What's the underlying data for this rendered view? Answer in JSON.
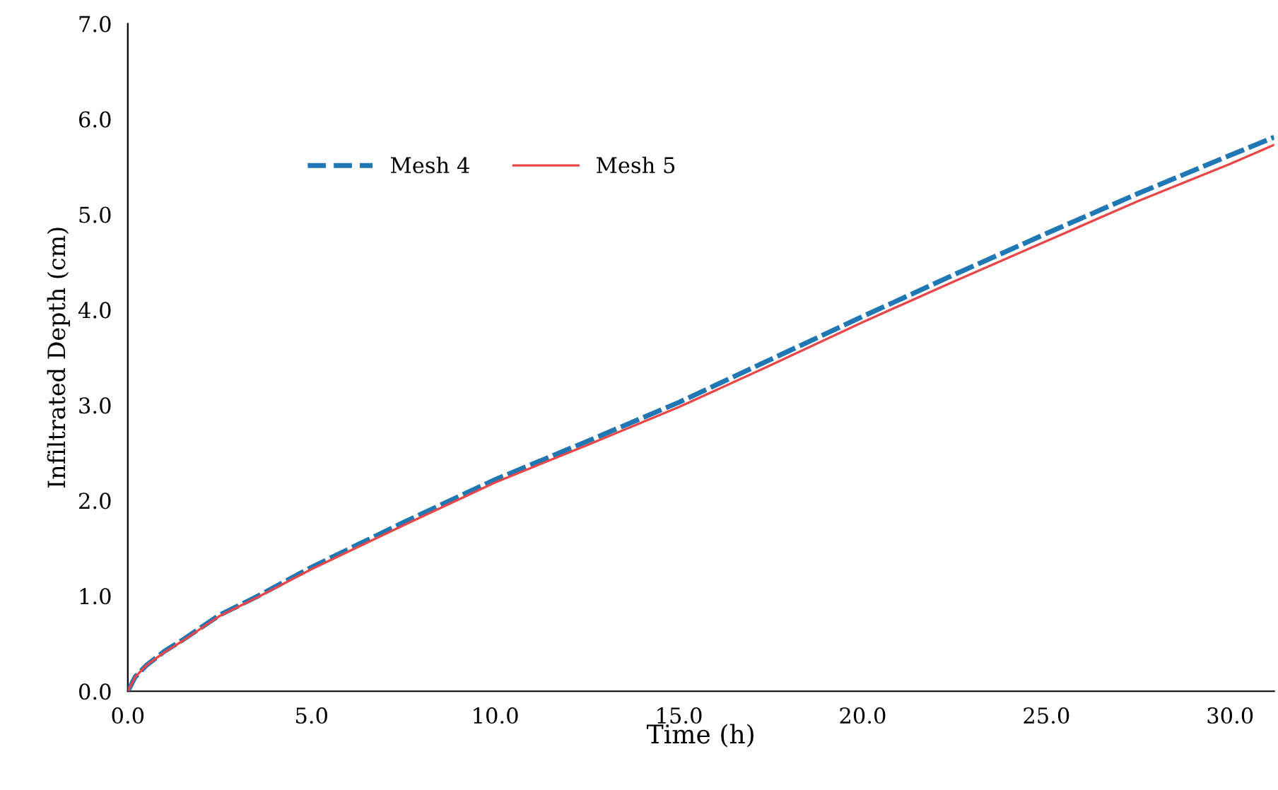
{
  "chart_data": {
    "type": "line",
    "xlabel": "Time (h)",
    "ylabel": "Infiltrated Depth (cm)",
    "xlim": [
      0,
      31.2
    ],
    "ylim": [
      0,
      7
    ],
    "xticks": [
      {
        "value": 0,
        "label": "0.0"
      },
      {
        "value": 5,
        "label": "5.0"
      },
      {
        "value": 10,
        "label": "10.0"
      },
      {
        "value": 15,
        "label": "15.0"
      },
      {
        "value": 20,
        "label": "20.0"
      },
      {
        "value": 25,
        "label": "25.0"
      },
      {
        "value": 30,
        "label": "30.0"
      }
    ],
    "yticks": [
      {
        "value": 0,
        "label": "0.0"
      },
      {
        "value": 1,
        "label": "1.0"
      },
      {
        "value": 2,
        "label": "2.0"
      },
      {
        "value": 3,
        "label": "3.0"
      },
      {
        "value": 4,
        "label": "4.0"
      },
      {
        "value": 5,
        "label": "5.0"
      },
      {
        "value": 6,
        "label": "6.0"
      },
      {
        "value": 7,
        "label": "7.0"
      }
    ],
    "x": [
      0,
      0.2,
      0.5,
      1,
      1.5,
      2.5,
      3.5,
      5,
      7.5,
      10,
      12.5,
      15,
      17.5,
      20,
      22.5,
      25,
      27.5,
      30,
      31.2
    ],
    "grid": false,
    "legend": "top left",
    "series": [
      {
        "name": "Mesh 4",
        "color": "#1f77b4",
        "line_style": "dashed",
        "values": [
          0,
          0.15,
          0.27,
          0.42,
          0.54,
          0.8,
          0.99,
          1.3,
          1.77,
          2.22,
          2.62,
          3.03,
          3.48,
          3.93,
          4.37,
          4.8,
          5.22,
          5.62,
          5.81
        ]
      },
      {
        "name": "Mesh 5",
        "color": "#e8474a",
        "line_style": "solid",
        "values": [
          0,
          0.15,
          0.27,
          0.41,
          0.53,
          0.79,
          0.98,
          1.28,
          1.74,
          2.19,
          2.58,
          2.98,
          3.42,
          3.87,
          4.3,
          4.72,
          5.14,
          5.53,
          5.73
        ]
      }
    ]
  }
}
